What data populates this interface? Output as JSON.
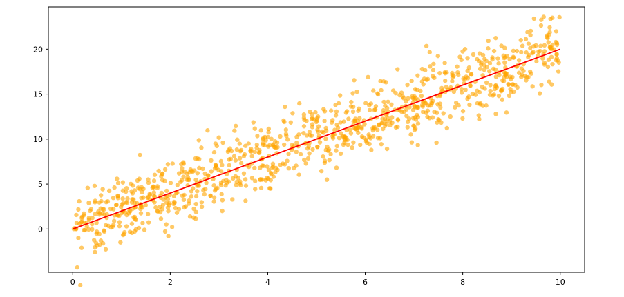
{
  "chart_data": {
    "type": "scatter",
    "title": "",
    "xlabel": "",
    "ylabel": "",
    "xlim": [
      -0.5,
      10.5
    ],
    "ylim": [
      -4.8,
      24.7
    ],
    "xticks": [
      0,
      2,
      4,
      6,
      8,
      10
    ],
    "yticks": [
      0,
      5,
      10,
      15,
      20
    ],
    "xtick_labels": [
      "0",
      "2",
      "4",
      "6",
      "8",
      "10"
    ],
    "ytick_labels": [
      "0",
      "5",
      "10",
      "15",
      "20"
    ],
    "grid": false,
    "legend": "none",
    "series": [
      {
        "kind": "scatter",
        "color": "#ffa500",
        "opacity": 0.6,
        "n_points": 1000,
        "trend": {
          "slope": 2,
          "intercept": 0
        },
        "noise_sd": 2,
        "x_range": [
          0,
          10
        ]
      },
      {
        "kind": "line",
        "color": "#ff0000",
        "x": [
          0,
          10
        ],
        "y": [
          0,
          20
        ]
      }
    ]
  }
}
